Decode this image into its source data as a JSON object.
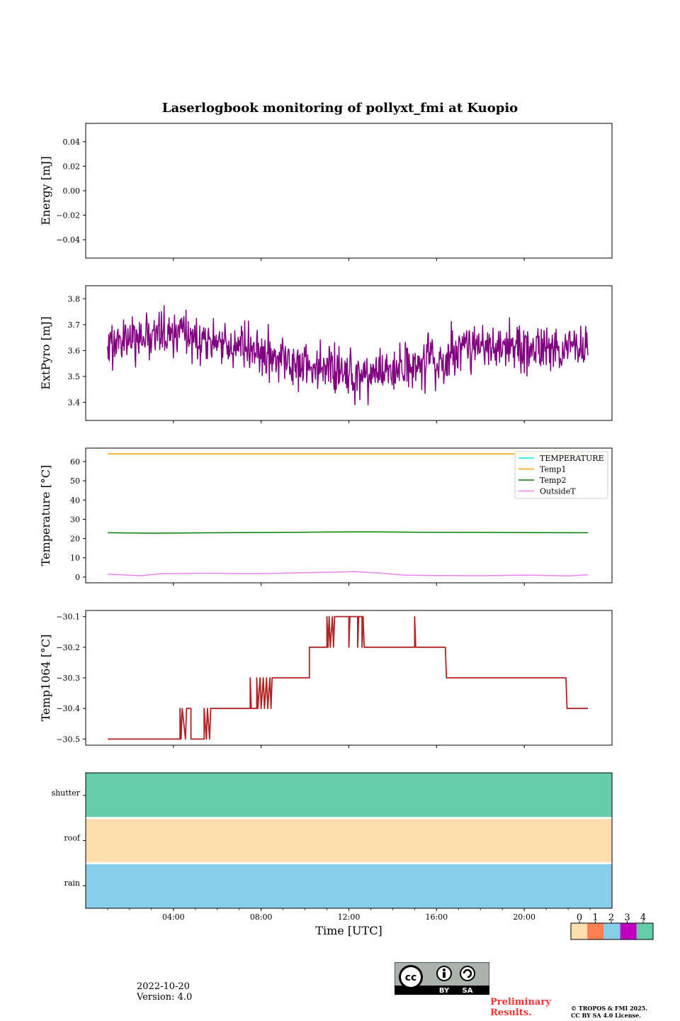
{
  "chart_data": [
    {
      "id": "energy",
      "type": "line",
      "title": "Laserlogbook monitoring of pollyxt_fmi at Kuopio",
      "ylabel": "Energy [mJ]",
      "ylim": [
        -0.055,
        0.055
      ],
      "yticks": [
        0.04,
        0.02,
        0.0,
        -0.02,
        -0.04
      ],
      "ytick_labels": [
        "0.04",
        "0.02",
        "0.00",
        "−0.02",
        "−0.04"
      ],
      "series": []
    },
    {
      "id": "extpyro",
      "type": "line",
      "ylabel": "ExtPyro [mJ]",
      "ylim": [
        3.33,
        3.85
      ],
      "yticks": [
        3.8,
        3.7,
        3.6,
        3.5,
        3.4
      ],
      "ytick_labels": [
        "3.8",
        "3.7",
        "3.6",
        "3.5",
        "3.4"
      ],
      "series": [
        {
          "name": "ExtPyro",
          "color": "#800080",
          "noise": 0.045,
          "trend": [
            [
              1.0,
              3.62
            ],
            [
              3.0,
              3.66
            ],
            [
              6.0,
              3.64
            ],
            [
              9.0,
              3.57
            ],
            [
              11.0,
              3.52
            ],
            [
              13.0,
              3.5
            ],
            [
              14.5,
              3.52
            ],
            [
              16.3,
              3.56
            ],
            [
              16.8,
              3.61
            ],
            [
              19.0,
              3.61
            ],
            [
              22.0,
              3.6
            ],
            [
              22.9,
              3.6
            ]
          ]
        }
      ]
    },
    {
      "id": "temperature",
      "type": "line",
      "ylabel": "Temperature [°C]",
      "ylim": [
        -3,
        67
      ],
      "yticks": [
        60,
        50,
        40,
        30,
        20,
        10,
        0
      ],
      "ytick_labels": [
        "60",
        "50",
        "40",
        "30",
        "20",
        "10",
        "0"
      ],
      "legend_position": "top-right",
      "series": [
        {
          "name": "TEMPERATURE",
          "color": "#00e5ee",
          "points": []
        },
        {
          "name": "Temp1",
          "color": "#ffa500",
          "points": [
            [
              1.0,
              64.0
            ],
            [
              22.9,
              64.0
            ]
          ]
        },
        {
          "name": "Temp2",
          "color": "#008000",
          "points": [
            [
              1.0,
              23.0
            ],
            [
              3.0,
              22.8
            ],
            [
              6.0,
              23.0
            ],
            [
              9.0,
              23.2
            ],
            [
              11.0,
              23.4
            ],
            [
              13.0,
              23.5
            ],
            [
              15.0,
              23.3
            ],
            [
              18.0,
              23.2
            ],
            [
              22.9,
              23.0
            ]
          ]
        },
        {
          "name": "OutsideT",
          "color": "#ee82ee",
          "points": [
            [
              1.0,
              1.5
            ],
            [
              2.5,
              0.7
            ],
            [
              3.5,
              1.8
            ],
            [
              5.5,
              2.0
            ],
            [
              7.5,
              1.8
            ],
            [
              9.0,
              2.0
            ],
            [
              11.0,
              2.5
            ],
            [
              12.3,
              2.8
            ],
            [
              13.5,
              2.0
            ],
            [
              14.5,
              1.0
            ],
            [
              16.0,
              0.8
            ],
            [
              18.0,
              0.7
            ],
            [
              20.0,
              1.0
            ],
            [
              22.0,
              0.6
            ],
            [
              22.9,
              1.2
            ]
          ]
        }
      ]
    },
    {
      "id": "temp1064",
      "type": "line",
      "ylabel": "Temp1064 [°C]",
      "ylim": [
        -30.52,
        -30.08
      ],
      "yticks": [
        -30.1,
        -30.2,
        -30.3,
        -30.4,
        -30.5
      ],
      "ytick_labels": [
        "−30.1",
        "−30.2",
        "−30.3",
        "−30.4",
        "−30.5"
      ],
      "series": [
        {
          "name": "Temp1064",
          "color": "#b22222",
          "steps": [
            [
              1.0,
              -30.5
            ],
            [
              4.3,
              -30.5
            ],
            [
              4.3,
              -30.4
            ],
            [
              4.35,
              -30.5
            ],
            [
              4.4,
              -30.4
            ],
            [
              4.55,
              -30.5
            ],
            [
              4.6,
              -30.4
            ],
            [
              4.8,
              -30.4
            ],
            [
              4.8,
              -30.5
            ],
            [
              5.4,
              -30.5
            ],
            [
              5.4,
              -30.4
            ],
            [
              5.5,
              -30.5
            ],
            [
              5.55,
              -30.4
            ],
            [
              5.65,
              -30.5
            ],
            [
              5.7,
              -30.4
            ],
            [
              7.5,
              -30.4
            ],
            [
              7.5,
              -30.3
            ],
            [
              7.55,
              -30.4
            ],
            [
              7.8,
              -30.4
            ],
            [
              7.8,
              -30.3
            ],
            [
              7.85,
              -30.4
            ],
            [
              7.95,
              -30.3
            ],
            [
              8.0,
              -30.4
            ],
            [
              8.1,
              -30.3
            ],
            [
              8.15,
              -30.4
            ],
            [
              8.25,
              -30.3
            ],
            [
              8.3,
              -30.4
            ],
            [
              8.4,
              -30.3
            ],
            [
              8.45,
              -30.4
            ],
            [
              8.5,
              -30.3
            ],
            [
              10.2,
              -30.3
            ],
            [
              10.2,
              -30.2
            ],
            [
              11.0,
              -30.2
            ],
            [
              11.0,
              -30.1
            ],
            [
              11.05,
              -30.2
            ],
            [
              11.1,
              -30.1
            ],
            [
              11.15,
              -30.2
            ],
            [
              11.25,
              -30.1
            ],
            [
              11.3,
              -30.2
            ],
            [
              11.35,
              -30.1
            ],
            [
              12.0,
              -30.1
            ],
            [
              12.0,
              -30.2
            ],
            [
              12.05,
              -30.1
            ],
            [
              12.4,
              -30.1
            ],
            [
              12.4,
              -30.2
            ],
            [
              12.45,
              -30.1
            ],
            [
              12.6,
              -30.1
            ],
            [
              12.6,
              -30.2
            ],
            [
              12.65,
              -30.1
            ],
            [
              12.7,
              -30.2
            ],
            [
              15.0,
              -30.2
            ],
            [
              15.0,
              -30.1
            ],
            [
              15.05,
              -30.2
            ],
            [
              16.4,
              -30.2
            ],
            [
              16.45,
              -30.3
            ],
            [
              21.9,
              -30.3
            ],
            [
              21.95,
              -30.4
            ],
            [
              22.9,
              -30.4
            ]
          ]
        }
      ]
    },
    {
      "id": "status",
      "type": "heatmap",
      "xlabel": "Time [UTC]",
      "xlim": [
        0,
        24
      ],
      "xticks": [
        4,
        8,
        12,
        16,
        20
      ],
      "xtick_labels": [
        "04:00",
        "08:00",
        "12:00",
        "16:00",
        "20:00"
      ],
      "rows": [
        {
          "label": "shutter",
          "value": 4
        },
        {
          "label": "roof",
          "value": 0
        },
        {
          "label": "rain",
          "value": 2
        }
      ],
      "colorbar": {
        "ticks": [
          "0",
          "1",
          "2",
          "3",
          "4"
        ],
        "colors": [
          "#ffdead",
          "#ff7f50",
          "#87ceeb",
          "#c000c0",
          "#66cdaa"
        ]
      }
    }
  ],
  "footer": {
    "date": "2022-10-20",
    "version": "Version: 4.0",
    "preliminary": "Preliminary Results.",
    "copyright_line1": "© TROPOS & FMI 2025.",
    "copyright_line2": "CC BY SA 4.0 License.",
    "license_badge": {
      "top": "cc",
      "by": "BY",
      "sa": "SA"
    }
  }
}
